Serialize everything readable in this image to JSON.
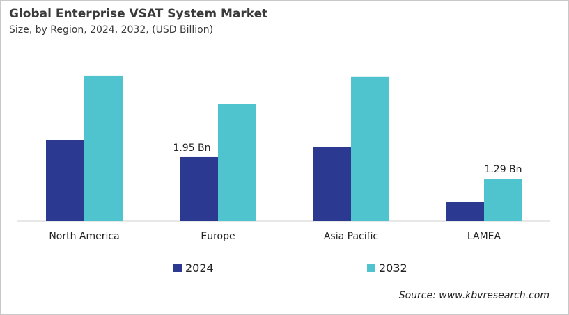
{
  "chart_data": {
    "type": "bar",
    "title": "Global Enterprise VSAT System Market",
    "subtitle": "Size, by Region, 2024, 2032, (USD Billion)",
    "categories": [
      "North America",
      "Europe",
      "Asia Pacific",
      "LAMEA"
    ],
    "series": [
      {
        "name": "2024",
        "color": "#2b3990",
        "values": [
          2.46,
          1.95,
          2.25,
          0.59
        ]
      },
      {
        "name": "2032",
        "color": "#4fc4cf",
        "values": [
          4.43,
          3.58,
          4.39,
          1.29
        ]
      }
    ],
    "data_labels": [
      {
        "series": 0,
        "category": 1,
        "text": "1.95 Bn"
      },
      {
        "series": 1,
        "category": 3,
        "text": "1.29 Bn"
      }
    ],
    "ylim": [
      0,
      4.6
    ],
    "grid": false,
    "legend": "bottom",
    "source": "Source: www.kbvresearch.com"
  }
}
